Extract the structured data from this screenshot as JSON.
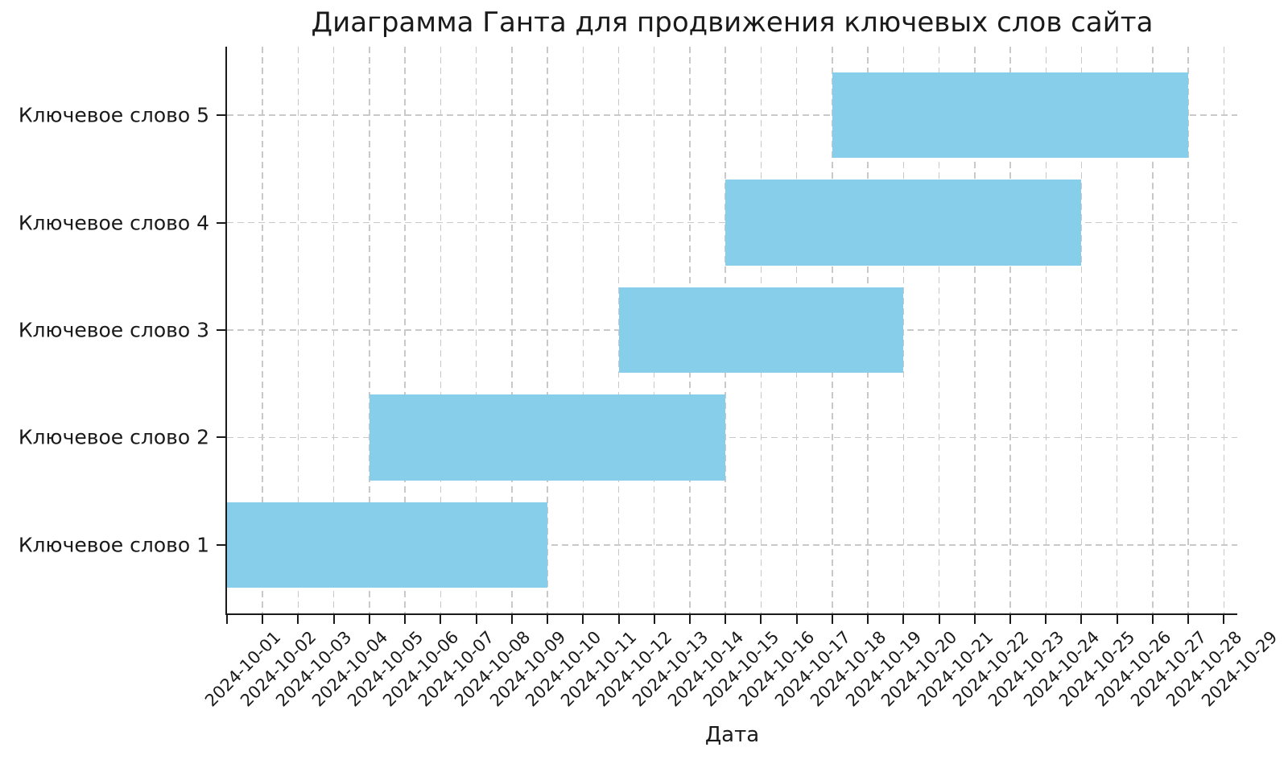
{
  "chart_data": {
    "type": "bar",
    "variant": "gantt-horizontal",
    "title": "Диаграмма Ганта для продвижения ключевых слов сайта",
    "xlabel": "Дата",
    "ylabel": "",
    "categories": [
      "Ключевое слово 1",
      "Ключевое слово 2",
      "Ключевое слово 3",
      "Ключевое слово 4",
      "Ключевое слово 5"
    ],
    "tasks": [
      {
        "label": "Ключевое слово 1",
        "start": "2024-10-01",
        "end": "2024-10-10",
        "duration_days": 9
      },
      {
        "label": "Ключевое слово 2",
        "start": "2024-10-05",
        "end": "2024-10-15",
        "duration_days": 10
      },
      {
        "label": "Ключевое слово 3",
        "start": "2024-10-12",
        "end": "2024-10-20",
        "duration_days": 8
      },
      {
        "label": "Ключевое слово 4",
        "start": "2024-10-15",
        "end": "2024-10-25",
        "duration_days": 10
      },
      {
        "label": "Ключевое слово 5",
        "start": "2024-10-18",
        "end": "2024-10-28",
        "duration_days": 10
      }
    ],
    "x_tick_labels": [
      "2024-10-01",
      "2024-10-02",
      "2024-10-03",
      "2024-10-04",
      "2024-10-05",
      "2024-10-06",
      "2024-10-07",
      "2024-10-08",
      "2024-10-09",
      "2024-10-10",
      "2024-10-11",
      "2024-10-12",
      "2024-10-13",
      "2024-10-14",
      "2024-10-15",
      "2024-10-16",
      "2024-10-17",
      "2024-10-18",
      "2024-10-19",
      "2024-10-20",
      "2024-10-21",
      "2024-10-22",
      "2024-10-23",
      "2024-10-24",
      "2024-10-25",
      "2024-10-26",
      "2024-10-27",
      "2024-10-28",
      "2024-10-29"
    ],
    "x_axis": {
      "min": "2024-10-01",
      "max_day_offset": 28.375,
      "tick_rotation_deg": 45
    },
    "bar_color": "#87CEEB",
    "bar_height_ratio": 0.8,
    "grid": {
      "show": true,
      "style": "dashed",
      "color": "#c9c9c9"
    },
    "axis_color": "#1a1a1a",
    "legend": null
  }
}
